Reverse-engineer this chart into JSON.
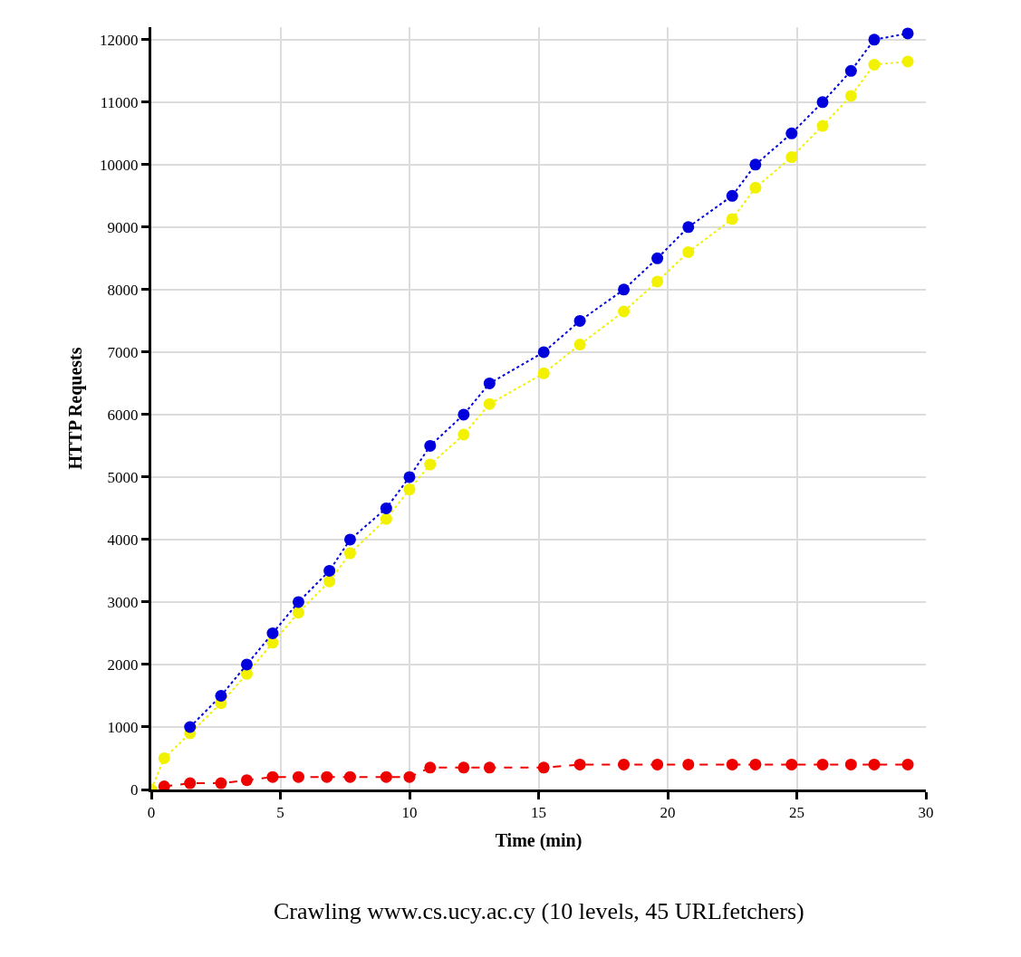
{
  "chart_data": {
    "type": "line",
    "xlabel": "Time (min)",
    "ylabel": "HTTP Requests",
    "annotations": [
      "Crawling www.cs.ucy.ac.cy (10 levels, 45 URLfetchers)"
    ],
    "xlim": [
      0,
      30
    ],
    "xticks": [
      0,
      5,
      10,
      15,
      20,
      25,
      30
    ],
    "ylim": [
      0,
      12200
    ],
    "yticks": [
      0,
      1000,
      2000,
      3000,
      4000,
      5000,
      6000,
      7000,
      8000,
      9000,
      10000,
      11000,
      12000
    ],
    "grid": true,
    "marker": "circle",
    "series": [
      {
        "color": "#f2f200",
        "line_style": "dotted",
        "x": [
          0,
          0.5,
          1.5,
          2.7,
          3.7,
          4.7,
          5.7,
          6.9,
          7.7,
          9.1,
          10.0,
          10.8,
          12.1,
          13.1,
          15.2,
          16.6,
          18.3,
          19.6,
          20.8,
          22.5,
          23.4,
          24.8,
          26.0,
          27.1,
          28.0,
          29.3
        ],
        "values": [
          0,
          500,
          900,
          1380,
          1850,
          2350,
          2830,
          3330,
          3780,
          4330,
          4800,
          5200,
          5680,
          6170,
          6660,
          7120,
          7650,
          8130,
          8600,
          9130,
          9630,
          10120,
          10620,
          11100,
          11600,
          11650
        ]
      },
      {
        "color": "#0000dd",
        "line_style": "dotted",
        "x": [
          1.5,
          2.7,
          3.7,
          4.7,
          5.7,
          6.9,
          7.7,
          9.1,
          10.0,
          10.8,
          12.1,
          13.1,
          15.2,
          16.6,
          18.3,
          19.6,
          20.8,
          22.5,
          23.4,
          24.8,
          26.0,
          27.1,
          28.0,
          29.3
        ],
        "values": [
          1000,
          1500,
          2000,
          2500,
          3000,
          3500,
          4000,
          4500,
          5000,
          5500,
          6000,
          6500,
          7000,
          7500,
          8000,
          8500,
          9000,
          9500,
          10000,
          10500,
          11000,
          11500,
          12000,
          12100
        ]
      },
      {
        "color": "#ee0000",
        "line_style": "dashed",
        "x": [
          0.5,
          1.5,
          2.7,
          3.7,
          4.7,
          5.7,
          6.8,
          7.7,
          9.1,
          10.0,
          10.8,
          12.1,
          13.1,
          15.2,
          16.6,
          18.3,
          19.6,
          20.8,
          22.5,
          23.4,
          24.8,
          26.0,
          27.1,
          28.0,
          29.3
        ],
        "values": [
          50,
          100,
          100,
          150,
          200,
          200,
          200,
          200,
          200,
          200,
          350,
          350,
          350,
          350,
          400,
          400,
          400,
          400,
          400,
          400,
          400,
          400,
          400,
          400,
          400
        ]
      }
    ]
  }
}
